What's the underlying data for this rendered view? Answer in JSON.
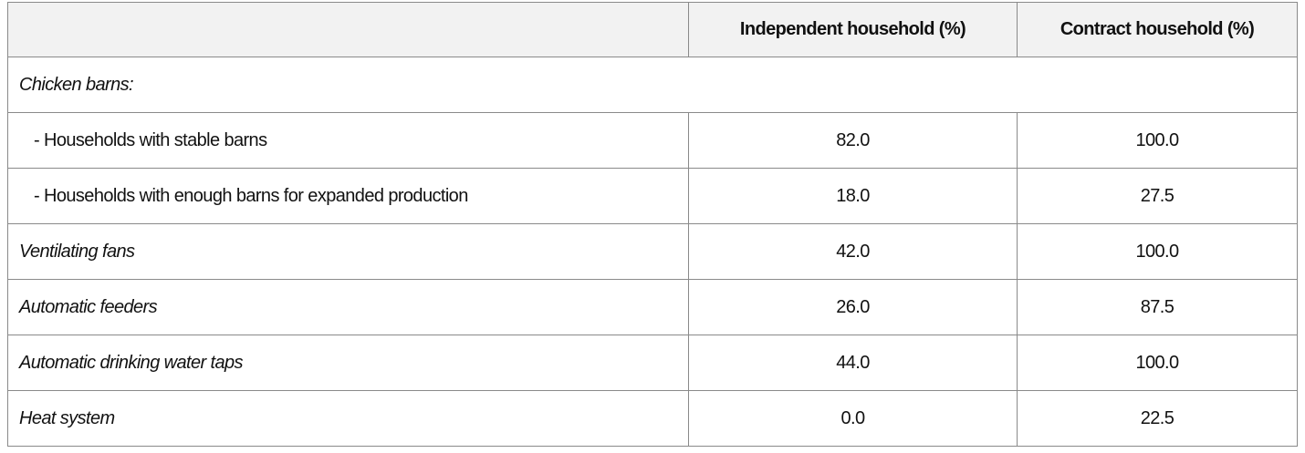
{
  "table": {
    "header": [
      "",
      "Independent household (%)",
      "Contract household (%)"
    ],
    "rows": [
      {
        "label": "Chicken barns:",
        "values": []
      },
      {
        "label": "- Households with stable barns",
        "values": [
          "82.0",
          "100.0"
        ]
      },
      {
        "label": "- Households with enough barns for expanded production",
        "values": [
          "18.0",
          "27.5"
        ]
      },
      {
        "label": "Ventilating fans",
        "values": [
          "42.0",
          "100.0"
        ]
      },
      {
        "label": "Automatic feeders",
        "values": [
          "26.0",
          "87.5"
        ]
      },
      {
        "label": "Automatic drinking water taps",
        "values": [
          "44.0",
          "100.0"
        ]
      },
      {
        "label": "Heat system",
        "values": [
          "0.0",
          "22.5"
        ]
      }
    ]
  }
}
